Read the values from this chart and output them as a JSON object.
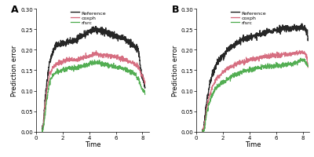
{
  "panel_A_label": "A",
  "panel_B_label": "B",
  "xlabel": "Time",
  "ylabel": "Prediction error",
  "xlim": [
    0,
    8.5
  ],
  "ylim": [
    0.0,
    0.3
  ],
  "yticks": [
    0.0,
    0.05,
    0.1,
    0.15,
    0.2,
    0.25,
    0.3
  ],
  "xticks": [
    0,
    2,
    4,
    6,
    8
  ],
  "legend_labels": [
    "Reference",
    "coxph",
    "rfsrc"
  ],
  "colors": {
    "Reference": "#1a1a1a",
    "coxph": "#d4667a",
    "rfsrc": "#4aaa4a"
  },
  "line_widths": {
    "Reference": 0.9,
    "coxph": 0.8,
    "rfsrc": 0.8
  },
  "background_color": "#ffffff",
  "panel_bg": "#ffffff"
}
